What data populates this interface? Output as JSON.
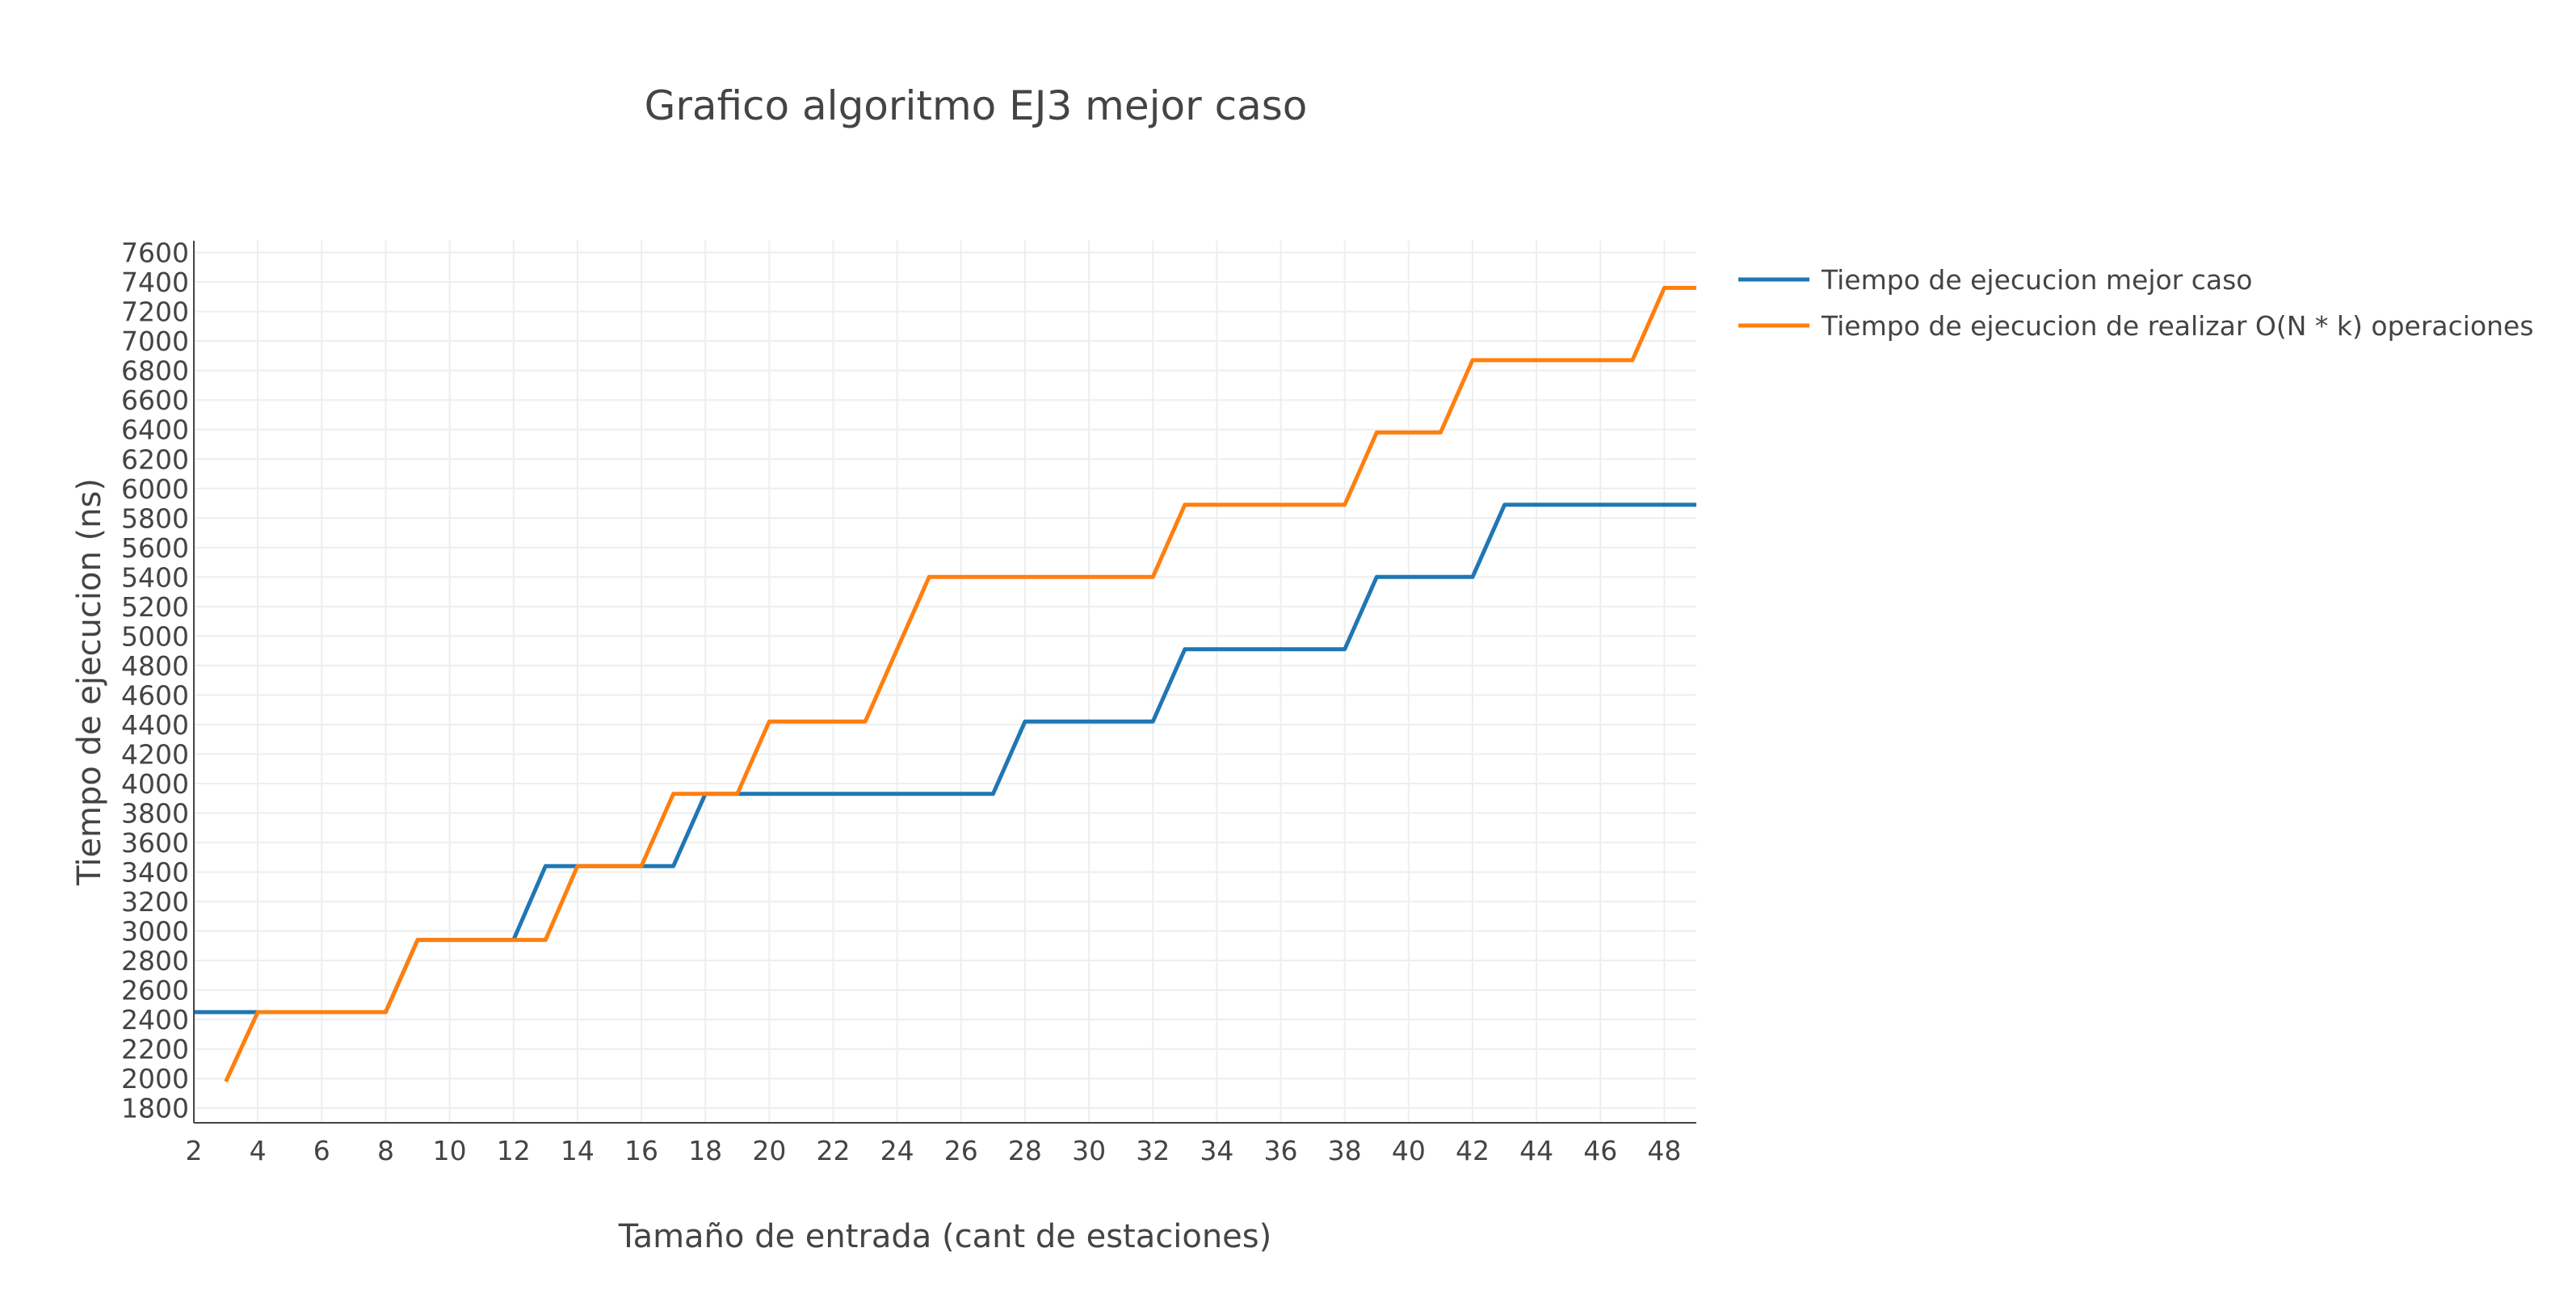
{
  "chart_data": {
    "type": "line",
    "title": "Grafico algoritmo EJ3 mejor caso",
    "xlabel": "Tamaño de entrada (cant de estaciones)",
    "ylabel": "Tiempo de ejecucion  (ns)",
    "xlim": [
      2,
      49
    ],
    "ylim": [
      1700,
      7680
    ],
    "x_ticks": [
      2,
      4,
      6,
      8,
      10,
      12,
      14,
      16,
      18,
      20,
      22,
      24,
      26,
      28,
      30,
      32,
      34,
      36,
      38,
      40,
      42,
      44,
      46,
      48
    ],
    "y_ticks": [
      1800,
      2000,
      2200,
      2400,
      2600,
      2800,
      3000,
      3200,
      3400,
      3600,
      3800,
      4000,
      4200,
      4400,
      4600,
      4800,
      5000,
      5200,
      5400,
      5600,
      5800,
      6000,
      6200,
      6400,
      6600,
      6800,
      7000,
      7200,
      7400,
      7600
    ],
    "grid": true,
    "legend_position": "top-right outside",
    "series": [
      {
        "name": "Tiempo de ejecucion mejor caso",
        "color": "#1f77b4",
        "x": [
          2,
          3,
          4,
          5,
          6,
          7,
          8,
          9,
          10,
          11,
          12,
          13,
          14,
          15,
          16,
          17,
          18,
          19,
          20,
          21,
          22,
          23,
          24,
          25,
          26,
          27,
          28,
          29,
          30,
          31,
          32,
          33,
          34,
          35,
          36,
          37,
          38,
          39,
          40,
          41,
          42,
          43,
          44,
          45,
          46,
          47,
          48,
          49
        ],
        "y": [
          2450,
          2450,
          2450,
          2450,
          2450,
          2450,
          2450,
          2940,
          2940,
          2940,
          2940,
          3440,
          3440,
          3440,
          3440,
          3440,
          3930,
          3930,
          3930,
          3930,
          3930,
          3930,
          3930,
          3930,
          3930,
          3930,
          4420,
          4420,
          4420,
          4420,
          4420,
          4910,
          4910,
          4910,
          4910,
          4910,
          4910,
          5400,
          5400,
          5400,
          5400,
          5890,
          5890,
          5890,
          5890,
          5890,
          5890,
          5890
        ]
      },
      {
        "name": "Tiempo de ejecucion de realizar O(N * k) operaciones",
        "color": "#ff7f0e",
        "x": [
          3,
          4,
          5,
          6,
          7,
          8,
          9,
          10,
          11,
          12,
          13,
          14,
          15,
          16,
          17,
          18,
          19,
          20,
          21,
          22,
          23,
          24,
          25,
          26,
          27,
          28,
          29,
          30,
          31,
          32,
          33,
          34,
          35,
          36,
          37,
          38,
          39,
          40,
          41,
          42,
          43,
          44,
          45,
          46,
          47,
          48,
          49
        ],
        "y": [
          1980,
          2450,
          2450,
          2450,
          2450,
          2450,
          2940,
          2940,
          2940,
          2940,
          2940,
          3440,
          3440,
          3440,
          3930,
          3930,
          3930,
          4420,
          4420,
          4420,
          4420,
          4910,
          5400,
          5400,
          5400,
          5400,
          5400,
          5400,
          5400,
          5400,
          5890,
          5890,
          5890,
          5890,
          5890,
          5890,
          6380,
          6380,
          6380,
          6870,
          6870,
          6870,
          6870,
          6870,
          6870,
          7360,
          7360
        ]
      }
    ]
  }
}
